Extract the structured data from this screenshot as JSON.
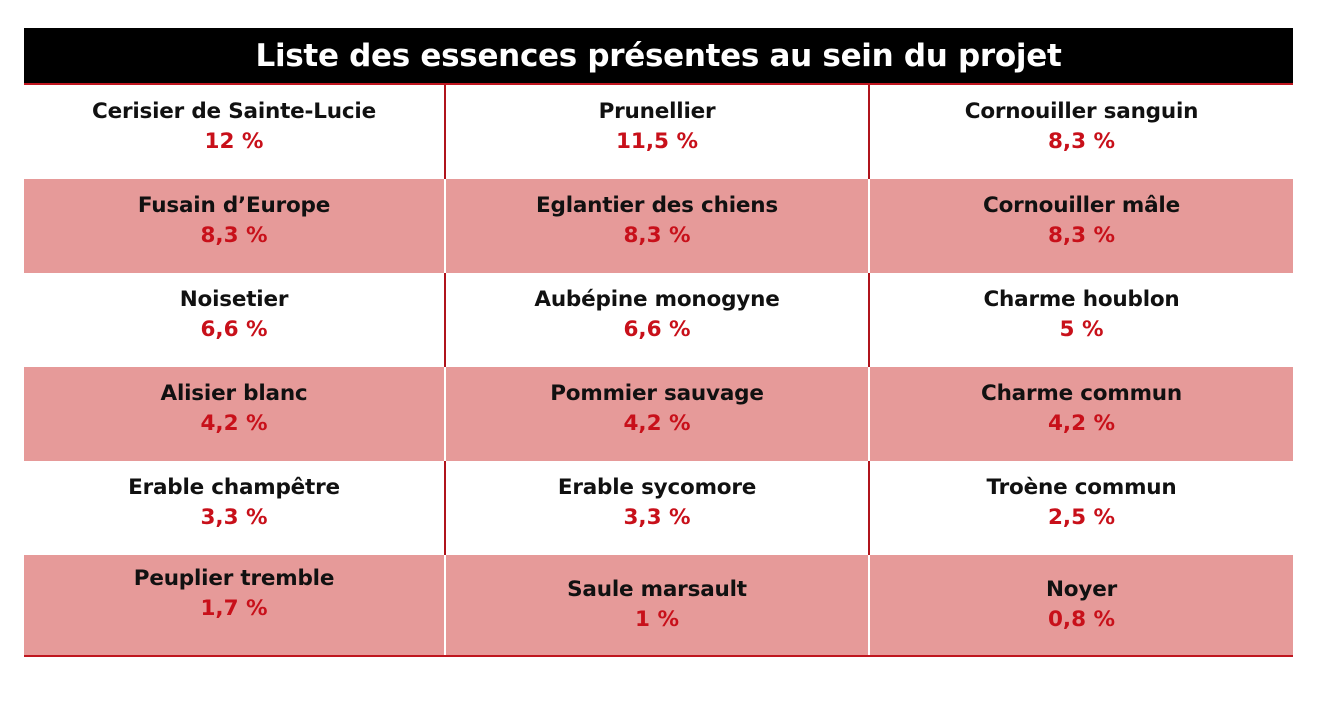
{
  "title": "Liste des essences présentes au sein du projet",
  "colors": {
    "title_bg": "#000000",
    "accent_red": "#c8101a",
    "stripe": "#e69a99"
  },
  "rows": [
    [
      {
        "name": "Cerisier de Sainte-Lucie",
        "pct": "12 %"
      },
      {
        "name": "Prunellier",
        "pct": "11,5 %"
      },
      {
        "name": "Cornouiller sanguin",
        "pct": "8,3 %"
      }
    ],
    [
      {
        "name": "Fusain d’Europe",
        "pct": "8,3 %"
      },
      {
        "name": "Eglantier des chiens",
        "pct": "8,3 %"
      },
      {
        "name": "Cornouiller mâle",
        "pct": "8,3 %"
      }
    ],
    [
      {
        "name": "Noisetier",
        "pct": "6,6 %"
      },
      {
        "name": "Aubépine monogyne",
        "pct": "6,6 %"
      },
      {
        "name": "Charme houblon",
        "pct": "5 %"
      }
    ],
    [
      {
        "name": "Alisier blanc",
        "pct": "4,2 %"
      },
      {
        "name": "Pommier sauvage",
        "pct": "4,2 %"
      },
      {
        "name": "Charme commun",
        "pct": "4,2 %"
      }
    ],
    [
      {
        "name": "Erable champêtre",
        "pct": "3,3 %"
      },
      {
        "name": "Erable sycomore",
        "pct": "3,3 %"
      },
      {
        "name": "Troène commun",
        "pct": "2,5 %"
      }
    ],
    [
      {
        "name": "Peuplier tremble",
        "pct": "1,7 %"
      },
      {
        "name": "Saule marsault",
        "pct": "1 %"
      },
      {
        "name": "Noyer",
        "pct": "0,8 %"
      }
    ]
  ]
}
